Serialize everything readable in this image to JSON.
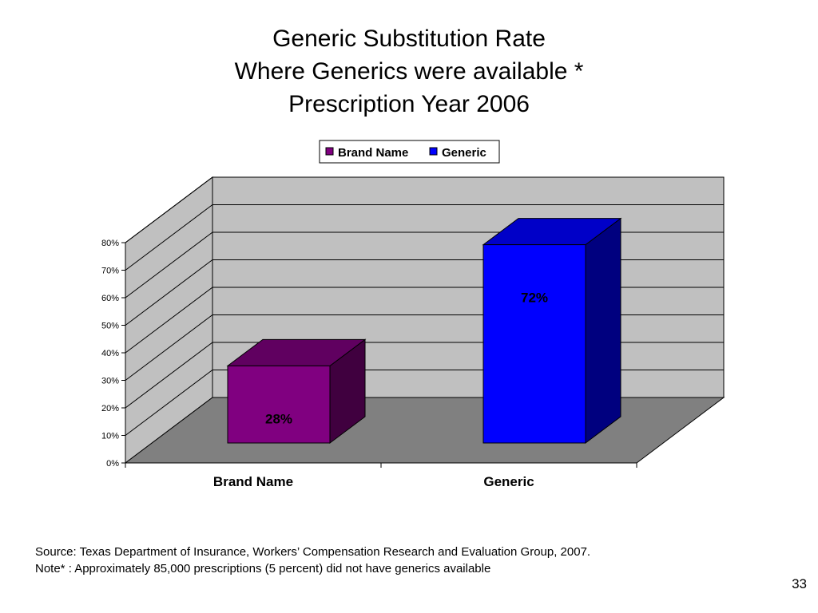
{
  "slide": {
    "title_lines": [
      "Generic Substitution Rate",
      "Where Generics were available *",
      "Prescription Year 2006"
    ],
    "source_lines": [
      "Source: Texas Department of Insurance, Workers’ Compensation Research and Evaluation Group, 2007.",
      "Note* : Approximately 85,000 prescriptions (5 percent) did not have generics available"
    ],
    "page_number": "33"
  },
  "chart_data": {
    "type": "bar",
    "three_d": true,
    "categories": [
      "Brand Name",
      "Generic"
    ],
    "values": [
      28,
      72
    ],
    "data_labels": [
      "28%",
      "72%"
    ],
    "legend": [
      "Brand Name",
      "Generic"
    ],
    "legend_position": "top",
    "y_ticks": [
      "0%",
      "10%",
      "20%",
      "30%",
      "40%",
      "50%",
      "60%",
      "70%",
      "80%"
    ],
    "ylim": [
      0,
      80
    ],
    "grid": true,
    "colors": {
      "brand_front": "#800080",
      "brand_side": "#40003f",
      "brand_top": "#600060",
      "generic_front": "#0000ff",
      "generic_side": "#00007f",
      "generic_top": "#0000c8",
      "wall": "#c0c0c0",
      "floor": "#808080"
    }
  }
}
